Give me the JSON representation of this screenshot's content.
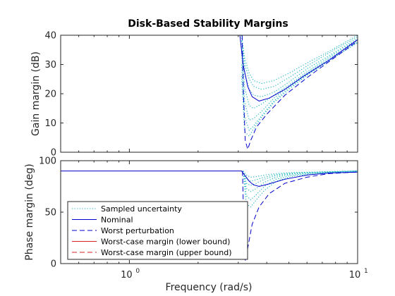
{
  "colors": {
    "sampled": "#17b3bf",
    "nominal": "#0000cc",
    "worst_perturbation": "#0000cc",
    "wc_lower": "#d62222",
    "wc_upper": "#d62222",
    "axes": "#262626",
    "grid": "#e6e6e6"
  },
  "chart_data": [
    {
      "type": "line",
      "title": "Disk-Based Stability Margins",
      "ylabel": "Gain margin (dB)",
      "xscale": "log",
      "xlim": [
        0.5,
        10
      ],
      "ylim": [
        0,
        40
      ],
      "yticks": [
        0,
        10,
        20,
        30,
        40
      ],
      "series": [
        {
          "name": "Sampled uncertainty",
          "style": "dotted",
          "color": "sampled",
          "curves": [
            {
              "x": [
                3.1,
                3.2,
                3.35,
                3.5,
                3.8,
                4.3,
                5.0,
                6.0,
                7.5,
                10
              ],
              "y": [
                40,
                32,
                27,
                24.5,
                23.5,
                24.5,
                27,
                30.5,
                34.5,
                40
              ]
            },
            {
              "x": [
                3.1,
                3.2,
                3.35,
                3.5,
                3.8,
                4.3,
                5.0,
                6.0,
                7.5,
                10
              ],
              "y": [
                40,
                30,
                25,
                22.5,
                21.5,
                22.5,
                25.5,
                29.5,
                34,
                39.5
              ]
            },
            {
              "x": [
                3.1,
                3.2,
                3.35,
                3.5,
                3.8,
                4.3,
                5.0,
                6.0,
                7.5,
                10
              ],
              "y": [
                40,
                27,
                21.5,
                19.5,
                19,
                20.5,
                24,
                28.5,
                33,
                39
              ]
            },
            {
              "x": [
                3.1,
                3.2,
                3.35,
                3.5,
                3.8,
                4.3,
                5.0,
                6.0,
                7.5,
                10
              ],
              "y": [
                38,
                22,
                16,
                15,
                16.5,
                19.5,
                23,
                27.5,
                32.5,
                38.5
              ]
            },
            {
              "x": [
                3.1,
                3.2,
                3.35,
                3.5,
                3.8,
                4.3,
                5.0,
                6.0,
                7.5,
                10
              ],
              "y": [
                34,
                17,
                11,
                11.5,
                14,
                18.5,
                22.5,
                27,
                32,
                38
              ]
            },
            {
              "x": [
                3.1,
                3.2,
                3.35,
                3.5,
                3.8,
                4.3,
                5.0,
                6.0,
                7.5,
                10
              ],
              "y": [
                30,
                12,
                7.5,
                9,
                12.5,
                17.5,
                22,
                26.5,
                31.5,
                37.5
              ]
            },
            {
              "x": [
                3.1,
                3.2,
                3.35,
                3.5,
                3.8,
                4.3,
                5.0,
                6.0,
                7.5,
                10
              ],
              "y": [
                26,
                7,
                5.5,
                8,
                12,
                17,
                21.5,
                26.3,
                31.3,
                37.5
              ]
            }
          ]
        },
        {
          "name": "Nominal",
          "style": "solid",
          "color": "nominal",
          "curves": [
            {
              "x": [
                3.05,
                3.15,
                3.3,
                3.45,
                3.7,
                4.1,
                4.8,
                5.8,
                7.5,
                10
              ],
              "y": [
                40,
                30,
                22.5,
                19,
                17.5,
                18.5,
                21.5,
                26,
                31.5,
                38.5
              ]
            }
          ]
        },
        {
          "name": "Worst perturbation",
          "style": "dashed",
          "color": "worst_perturbation",
          "curves": [
            {
              "x": [
                3.12,
                3.16,
                3.22,
                3.3,
                3.4,
                3.6,
                4.0,
                4.8,
                6.0,
                7.5,
                10
              ],
              "y": [
                40,
                20,
                4,
                1,
                4,
                8.5,
                13,
                19.5,
                25.5,
                31,
                38
              ]
            }
          ]
        },
        {
          "name": "Worst-case margin (lower bound)",
          "style": "solid",
          "color": "wc_lower",
          "curves": [
            {
              "x": [
                0.5,
                10
              ],
              "y": [
                0,
                0
              ]
            }
          ]
        },
        {
          "name": "Worst-case margin (upper bound)",
          "style": "dashed",
          "color": "wc_upper",
          "curves": [
            {
              "x": [
                0.5,
                10
              ],
              "y": [
                0,
                0
              ]
            }
          ]
        }
      ]
    },
    {
      "type": "line",
      "xlabel": "Frequency (rad/s)",
      "ylabel": "Phase margin (deg)",
      "xscale": "log",
      "xlim": [
        0.5,
        10
      ],
      "ylim": [
        0,
        100
      ],
      "yticks": [
        0,
        50,
        100
      ],
      "xticks": [
        {
          "value": 1,
          "base": "10",
          "exp": "0"
        },
        {
          "value": 10,
          "base": "10",
          "exp": "1"
        }
      ],
      "legend": {
        "placement": "bottom-left",
        "entries": [
          "Sampled uncertainty",
          "Nominal",
          "Worst perturbation",
          "Worst-case margin (lower bound)",
          "Worst-case margin (upper bound)"
        ]
      },
      "series": [
        {
          "name": "Sampled uncertainty",
          "style": "dotted",
          "color": "sampled",
          "curves": [
            {
              "x": [
                3.15,
                3.25,
                3.4,
                3.6,
                3.9,
                4.4,
                5.2,
                6.5,
                8.0,
                10
              ],
              "y": [
                90,
                86,
                84,
                84.5,
                86,
                87.5,
                88.5,
                89,
                89.5,
                90
              ]
            },
            {
              "x": [
                3.15,
                3.25,
                3.4,
                3.6,
                3.9,
                4.4,
                5.2,
                6.5,
                8.0,
                10
              ],
              "y": [
                90,
                82,
                80,
                81.5,
                84,
                86.5,
                88,
                88.8,
                89.3,
                90
              ]
            },
            {
              "x": [
                3.15,
                3.25,
                3.4,
                3.6,
                3.9,
                4.4,
                5.2,
                6.5,
                8.0,
                10
              ],
              "y": [
                90,
                78,
                76,
                78,
                82,
                85.5,
                87.5,
                88.5,
                89.2,
                90
              ]
            },
            {
              "x": [
                3.15,
                3.25,
                3.4,
                3.6,
                3.9,
                4.4,
                5.2,
                6.5,
                8.0,
                10
              ],
              "y": [
                90,
                73,
                70,
                73,
                79,
                84,
                87,
                88.3,
                89.1,
                90
              ]
            },
            {
              "x": [
                3.15,
                3.25,
                3.4,
                3.6,
                3.9,
                4.4,
                5.2,
                6.5,
                8.0,
                10
              ],
              "y": [
                90,
                66,
                62,
                67,
                75,
                82,
                86,
                88,
                89,
                89.8
              ]
            },
            {
              "x": [
                3.15,
                3.25,
                3.4,
                3.6,
                3.9,
                4.4,
                5.2,
                6.5,
                8.0,
                10
              ],
              "y": [
                90,
                58,
                55,
                62,
                71,
                80,
                85,
                87.5,
                88.8,
                89.7
              ]
            }
          ]
        },
        {
          "name": "Nominal",
          "style": "solid",
          "color": "nominal",
          "curves": [
            {
              "x": [
                0.5,
                3.1,
                3.2,
                3.35,
                3.5,
                3.7,
                4.1,
                4.8,
                6.0,
                7.5,
                10
              ],
              "y": [
                90,
                90,
                86,
                80,
                76.5,
                75,
                77.5,
                82,
                86,
                88,
                89
              ]
            }
          ]
        },
        {
          "name": "Worst perturbation",
          "style": "dashed",
          "color": "worst_perturbation",
          "curves": [
            {
              "x": [
                3.13,
                3.17,
                3.22,
                3.3,
                3.45,
                3.7,
                4.1,
                4.8,
                6.0,
                7.5,
                10
              ],
              "y": [
                90,
                40,
                3,
                15,
                38,
                55,
                68,
                78,
                84,
                87.5,
                89
              ]
            }
          ]
        },
        {
          "name": "Worst-case margin (lower bound)",
          "style": "solid",
          "color": "wc_lower",
          "curves": [
            {
              "x": [
                0.5,
                10
              ],
              "y": [
                0,
                0
              ]
            }
          ]
        },
        {
          "name": "Worst-case margin (upper bound)",
          "style": "dashed",
          "color": "wc_upper",
          "curves": [
            {
              "x": [
                0.5,
                10
              ],
              "y": [
                0,
                0
              ]
            }
          ]
        }
      ]
    }
  ]
}
